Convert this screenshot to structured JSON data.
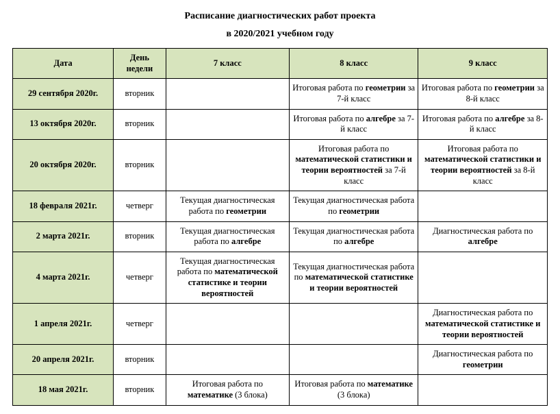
{
  "title": "Расписание диагностических работ проекта",
  "subtitle": "в 2020/2021 учебном году",
  "columns": {
    "date": "Дата",
    "day": "День недели",
    "g7": "7 класс",
    "g8": "8 класс",
    "g9": "9 класс"
  },
  "rows": [
    {
      "date": "29 сентября 2020г.",
      "day": "вторник",
      "g7": "",
      "g8": "Итоговая работа по <b>геометрии</b>  за 7-й класс",
      "g9": "Итоговая работа по <b>геометрии</b>  за 8-й класс"
    },
    {
      "date": "13 октября 2020г.",
      "day": "вторник",
      "g7": "",
      "g8": "Итоговая работа по <b>алгебре</b> за 7-й класс",
      "g9": "Итоговая работа по <b>алгебре</b> за 8-й класс"
    },
    {
      "date": "20 октября  2020г.",
      "day": "вторник",
      "g7": "",
      "g8": "Итоговая работа по <b>математической статистики и теории вероятностей</b> за 7-й класс",
      "g9": "Итоговая работа по <b>математической статистики и теории вероятностей</b> за 8-й класс"
    },
    {
      "date": "18 февраля  2021г.",
      "day": "четверг",
      "g7": "Текущая диагностическая работа по <b>геометрии</b>",
      "g8": "Текущая диагностическая работа по <b>геометрии</b>",
      "g9": ""
    },
    {
      "date": "2 марта  2021г.",
      "day": "вторник",
      "g7": "Текущая диагностическая работа по <b>алгебре</b>",
      "g8": "Текущая диагностическая работа по <b>алгебре</b>",
      "g9": "Диагностическая работа по <b>алгебре</b>"
    },
    {
      "date": "4 марта 2021г.",
      "day": "четверг",
      "g7": "Текущая диагностическая работа по <b>математической статистике и теории вероятностей</b>",
      "g8": "Текущая диагностическая работа по <b>математической статистике и теории вероятностей</b>",
      "g9": ""
    },
    {
      "date": "1 апреля  2021г.",
      "day": "четверг",
      "g7": "",
      "g8": "",
      "g9": "Диагностическая работа по <b>математической статистике и теории вероятностей</b>"
    },
    {
      "date": "20 апреля  2021г.",
      "day": "вторник",
      "g7": "",
      "g8": "",
      "g9": "Диагностическая работа по <b>геометрии</b>"
    },
    {
      "date": "18 мая  2021г.",
      "day": "вторник",
      "g7": "Итоговая  работа  по <b>математике</b> (3 блока)",
      "g8": "Итоговая  работа  по <b>математике</b> (3 блока)",
      "g9": ""
    }
  ],
  "header_bg": "#d7e4bd",
  "border_color": "#000000",
  "font_family": "Times New Roman"
}
